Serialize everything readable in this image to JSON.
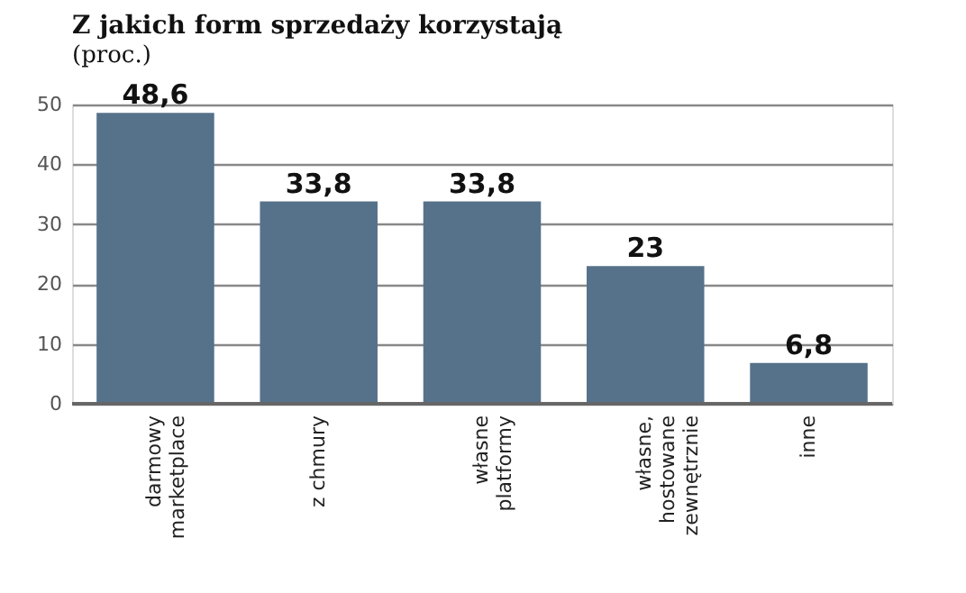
{
  "chart_data": {
    "type": "bar",
    "title": "Z jakich form sprzedaży korzystają",
    "subtitle": "(proc.)",
    "categories": [
      "darmowy\nmarketplace",
      "z chmury",
      "własne\nplatformy",
      "własne,\nhostowane\nzewnętrznie",
      "inne"
    ],
    "values": [
      48.6,
      33.8,
      33.8,
      23,
      6.8
    ],
    "color": "#56718a",
    "ylim": [
      0,
      50
    ],
    "yticks": [
      0,
      10,
      20,
      30,
      40,
      50
    ],
    "grid": "y",
    "value_labels": [
      "48,6",
      "33,8",
      "33,8",
      "23",
      "6,8"
    ]
  }
}
